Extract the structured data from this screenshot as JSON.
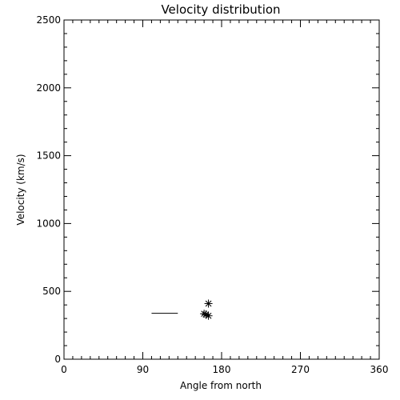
{
  "chart_data": {
    "type": "scatter",
    "title": "Velocity distribution",
    "xlabel": "Angle from north",
    "ylabel": "Velocity (km/s)",
    "xlim": [
      0,
      360
    ],
    "ylim": [
      0,
      2500
    ],
    "xticks": [
      0,
      90,
      180,
      270,
      360
    ],
    "yticks": [
      0,
      500,
      1000,
      1500,
      2000,
      2500
    ],
    "grid": false,
    "points": [
      {
        "x": 165,
        "y": 410
      },
      {
        "x": 160,
        "y": 335
      },
      {
        "x": 162,
        "y": 330
      },
      {
        "x": 165,
        "y": 320
      }
    ],
    "segments": [
      {
        "x1": 100,
        "x2": 130,
        "y": 338
      }
    ]
  }
}
